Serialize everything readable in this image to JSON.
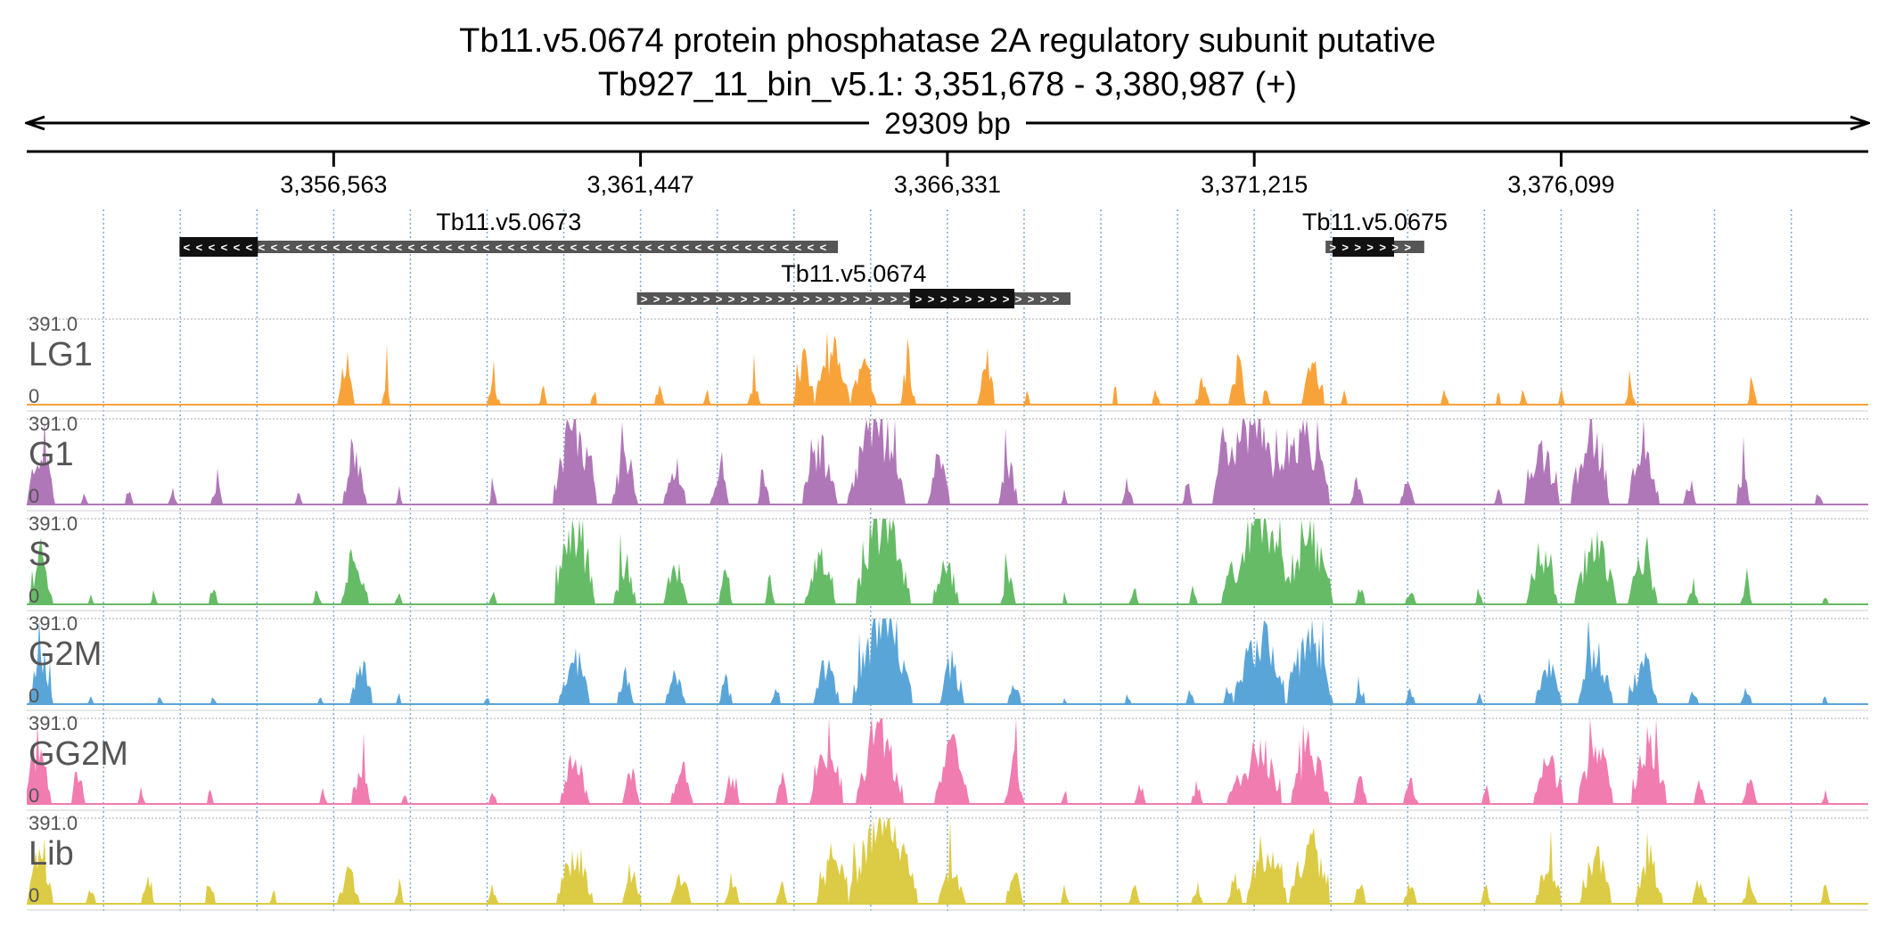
{
  "header": {
    "title": "Tb11.v5.0674  protein phosphatase 2A regulatory subunit  putative",
    "locus": "Tb927_11_bin_v5.1: 3,351,678 - 3,380,987 (+)",
    "span_label": "29309 bp"
  },
  "region": {
    "start": 3351678,
    "end": 3380987
  },
  "ruler": {
    "ticks": [
      {
        "pos": 3356563,
        "label": "3,356,563"
      },
      {
        "pos": 3361447,
        "label": "3,361,447"
      },
      {
        "pos": 3366331,
        "label": "3,366,331"
      },
      {
        "pos": 3371215,
        "label": "3,371,215"
      },
      {
        "pos": 3376099,
        "label": "3,376,099"
      }
    ]
  },
  "genes": [
    {
      "label": "Tb11.v5.0673",
      "strand": "-",
      "start": 3354110,
      "end": 3364589,
      "cds_start": 3354110,
      "cds_end": 3355356,
      "row": 0
    },
    {
      "label": "Tb11.v5.0674",
      "strand": "+",
      "start": 3361390,
      "end": 3368290,
      "cds_start": 3365734,
      "cds_end": 3367397,
      "row": 1
    },
    {
      "label": "Tb11.v5.0675",
      "strand": "+",
      "start": 3372350,
      "end": 3373920,
      "cds_start": 3372460,
      "cds_end": 3373440,
      "row": 0
    }
  ],
  "tracks": [
    {
      "name": "LG1",
      "color": "#f8a33a",
      "max_label": "391.0",
      "min_label": "0",
      "seed": 11,
      "peaks": [
        [
          3356760,
          70,
          250
        ],
        [
          3357400,
          30,
          150
        ],
        [
          3359100,
          55,
          100
        ],
        [
          3359900,
          30,
          90
        ],
        [
          3360700,
          25,
          70
        ],
        [
          3361750,
          40,
          120
        ],
        [
          3362500,
          30,
          80
        ],
        [
          3363250,
          55,
          110
        ],
        [
          3364050,
          90,
          220
        ],
        [
          3364500,
          150,
          280
        ],
        [
          3365000,
          110,
          200
        ],
        [
          3365700,
          60,
          220
        ],
        [
          3366950,
          70,
          230
        ],
        [
          3367600,
          20,
          80
        ],
        [
          3369000,
          20,
          110
        ],
        [
          3369650,
          30,
          90
        ],
        [
          3370400,
          60,
          120
        ],
        [
          3370950,
          70,
          220
        ],
        [
          3371400,
          30,
          90
        ],
        [
          3372150,
          90,
          220
        ],
        [
          3372650,
          25,
          60
        ],
        [
          3374250,
          30,
          90
        ],
        [
          3375100,
          20,
          60
        ],
        [
          3375500,
          30,
          80
        ],
        [
          3376100,
          25,
          80
        ],
        [
          3377200,
          40,
          120
        ],
        [
          3379150,
          35,
          110
        ]
      ]
    },
    {
      "name": "G1",
      "color": "#b077b8",
      "max_label": "391.0",
      "min_label": "0",
      "seed": 23,
      "peaks": [
        [
          3351900,
          120,
          320
        ],
        [
          3352600,
          25,
          70
        ],
        [
          3353300,
          30,
          100
        ],
        [
          3354000,
          35,
          90
        ],
        [
          3354700,
          45,
          120
        ],
        [
          3356000,
          30,
          80
        ],
        [
          3356900,
          100,
          300
        ],
        [
          3357600,
          25,
          90
        ],
        [
          3359100,
          30,
          90
        ],
        [
          3360400,
          190,
          450
        ],
        [
          3361200,
          110,
          260
        ],
        [
          3362000,
          95,
          230
        ],
        [
          3362700,
          70,
          180
        ],
        [
          3363400,
          45,
          140
        ],
        [
          3364300,
          150,
          300
        ],
        [
          3365200,
          240,
          480
        ],
        [
          3366200,
          90,
          270
        ],
        [
          3367300,
          80,
          230
        ],
        [
          3368200,
          25,
          80
        ],
        [
          3369200,
          40,
          120
        ],
        [
          3370150,
          40,
          110
        ],
        [
          3370700,
          70,
          150
        ],
        [
          3371100,
          280,
          480
        ],
        [
          3372000,
          220,
          430
        ],
        [
          3372850,
          50,
          140
        ],
        [
          3373650,
          60,
          120
        ],
        [
          3375100,
          30,
          90
        ],
        [
          3375800,
          145,
          300
        ],
        [
          3376550,
          160,
          380
        ],
        [
          3377400,
          130,
          300
        ],
        [
          3378150,
          50,
          120
        ],
        [
          3379000,
          55,
          150
        ],
        [
          3380200,
          30,
          90
        ]
      ]
    },
    {
      "name": "S",
      "color": "#66bb66",
      "max_label": "391.0",
      "min_label": "0",
      "seed": 37,
      "peaks": [
        [
          3351900,
          95,
          300
        ],
        [
          3352700,
          25,
          60
        ],
        [
          3353700,
          30,
          70
        ],
        [
          3354650,
          35,
          90
        ],
        [
          3356300,
          35,
          80
        ],
        [
          3356900,
          110,
          290
        ],
        [
          3357600,
          30,
          80
        ],
        [
          3359100,
          30,
          60
        ],
        [
          3360400,
          170,
          420
        ],
        [
          3361200,
          90,
          230
        ],
        [
          3362000,
          100,
          200
        ],
        [
          3362800,
          60,
          160
        ],
        [
          3363500,
          40,
          120
        ],
        [
          3364300,
          130,
          240
        ],
        [
          3365300,
          230,
          470
        ],
        [
          3366300,
          110,
          250
        ],
        [
          3367300,
          60,
          160
        ],
        [
          3368200,
          20,
          60
        ],
        [
          3369300,
          35,
          90
        ],
        [
          3370250,
          35,
          90
        ],
        [
          3370800,
          50,
          110
        ],
        [
          3371300,
          270,
          430
        ],
        [
          3372100,
          200,
          370
        ],
        [
          3372900,
          45,
          110
        ],
        [
          3373700,
          45,
          90
        ],
        [
          3374800,
          30,
          70
        ],
        [
          3375800,
          135,
          280
        ],
        [
          3376650,
          175,
          370
        ],
        [
          3377400,
          120,
          250
        ],
        [
          3378200,
          45,
          110
        ],
        [
          3379050,
          50,
          110
        ],
        [
          3380300,
          25,
          60
        ]
      ]
    },
    {
      "name": "G2M",
      "color": "#5aa5d8",
      "max_label": "391.0",
      "min_label": "0",
      "seed": 53,
      "peaks": [
        [
          3351900,
          100,
          280
        ],
        [
          3352700,
          20,
          50
        ],
        [
          3353800,
          25,
          60
        ],
        [
          3354650,
          25,
          50
        ],
        [
          3356350,
          25,
          60
        ],
        [
          3357000,
          95,
          230
        ],
        [
          3357600,
          20,
          60
        ],
        [
          3359000,
          25,
          50
        ],
        [
          3360400,
          130,
          260
        ],
        [
          3361200,
          70,
          160
        ],
        [
          3362000,
          85,
          150
        ],
        [
          3362800,
          55,
          120
        ],
        [
          3363600,
          35,
          90
        ],
        [
          3364400,
          110,
          200
        ],
        [
          3365300,
          250,
          470
        ],
        [
          3366400,
          100,
          220
        ],
        [
          3367400,
          55,
          130
        ],
        [
          3368200,
          15,
          40
        ],
        [
          3369200,
          25,
          60
        ],
        [
          3370200,
          35,
          70
        ],
        [
          3370800,
          40,
          80
        ],
        [
          3371300,
          220,
          380
        ],
        [
          3372100,
          190,
          360
        ],
        [
          3372900,
          40,
          90
        ],
        [
          3373700,
          40,
          80
        ],
        [
          3374800,
          25,
          60
        ],
        [
          3375900,
          110,
          220
        ],
        [
          3376650,
          150,
          300
        ],
        [
          3377400,
          120,
          240
        ],
        [
          3378200,
          40,
          90
        ],
        [
          3379050,
          45,
          100
        ],
        [
          3380300,
          20,
          50
        ]
      ]
    },
    {
      "name": "GG2M",
      "color": "#f07cb0",
      "max_label": "391.0",
      "min_label": "0",
      "seed": 71,
      "peaks": [
        [
          3351850,
          110,
          320
        ],
        [
          3352500,
          60,
          160
        ],
        [
          3353500,
          30,
          70
        ],
        [
          3354600,
          30,
          80
        ],
        [
          3356400,
          30,
          80
        ],
        [
          3357000,
          75,
          180
        ],
        [
          3357700,
          25,
          70
        ],
        [
          3359100,
          30,
          70
        ],
        [
          3360400,
          120,
          240
        ],
        [
          3361300,
          70,
          180
        ],
        [
          3362100,
          95,
          190
        ],
        [
          3362900,
          60,
          150
        ],
        [
          3363700,
          50,
          150
        ],
        [
          3364400,
          140,
          260
        ],
        [
          3365250,
          200,
          420
        ],
        [
          3366400,
          140,
          300
        ],
        [
          3367400,
          80,
          210
        ],
        [
          3368200,
          25,
          70
        ],
        [
          3369400,
          45,
          110
        ],
        [
          3370300,
          45,
          100
        ],
        [
          3370900,
          55,
          110
        ],
        [
          3371300,
          180,
          320
        ],
        [
          3372100,
          160,
          300
        ],
        [
          3372900,
          55,
          130
        ],
        [
          3373700,
          60,
          120
        ],
        [
          3374900,
          35,
          90
        ],
        [
          3375900,
          120,
          230
        ],
        [
          3376650,
          150,
          330
        ],
        [
          3377500,
          150,
          310
        ],
        [
          3378300,
          50,
          120
        ],
        [
          3379100,
          55,
          120
        ],
        [
          3380300,
          30,
          70
        ]
      ]
    },
    {
      "name": "Lib",
      "color": "#dccb44",
      "max_label": "391.0",
      "min_label": "0",
      "seed": 89,
      "peaks": [
        [
          3351900,
          110,
          300
        ],
        [
          3352700,
          40,
          90
        ],
        [
          3353600,
          50,
          120
        ],
        [
          3354600,
          45,
          110
        ],
        [
          3355600,
          30,
          70
        ],
        [
          3356800,
          85,
          180
        ],
        [
          3357600,
          40,
          100
        ],
        [
          3359100,
          40,
          90
        ],
        [
          3360400,
          150,
          290
        ],
        [
          3361300,
          75,
          180
        ],
        [
          3362100,
          85,
          160
        ],
        [
          3362900,
          60,
          140
        ],
        [
          3363700,
          45,
          120
        ],
        [
          3364500,
          130,
          240
        ],
        [
          3365300,
          290,
          500
        ],
        [
          3366400,
          110,
          230
        ],
        [
          3367400,
          70,
          160
        ],
        [
          3368200,
          35,
          80
        ],
        [
          3369300,
          45,
          100
        ],
        [
          3370300,
          45,
          100
        ],
        [
          3370900,
          55,
          120
        ],
        [
          3371400,
          170,
          320
        ],
        [
          3372100,
          170,
          320
        ],
        [
          3372900,
          50,
          110
        ],
        [
          3373700,
          55,
          110
        ],
        [
          3374900,
          40,
          90
        ],
        [
          3375900,
          110,
          220
        ],
        [
          3376650,
          130,
          260
        ],
        [
          3377500,
          120,
          240
        ],
        [
          3378300,
          60,
          130
        ],
        [
          3379100,
          55,
          120
        ],
        [
          3380300,
          40,
          90
        ]
      ]
    }
  ]
}
